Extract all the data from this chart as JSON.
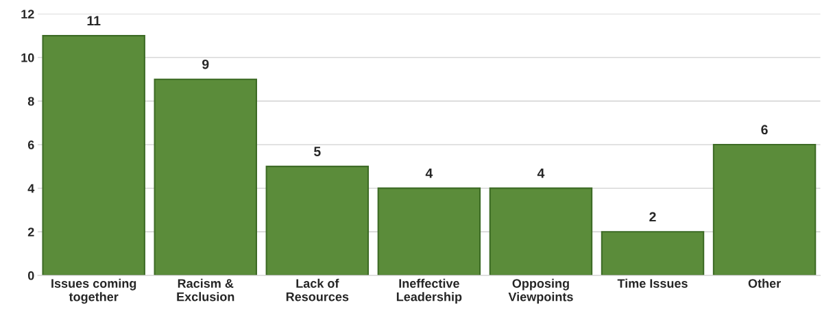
{
  "chart_data": {
    "type": "bar",
    "categories": [
      "Issues coming\ntogether",
      "Racism &\nExclusion",
      "Lack of\nResources",
      "Ineffective\nLeadership",
      "Opposing\nViewpoints",
      "Time Issues",
      "Other"
    ],
    "values": [
      11,
      9,
      5,
      4,
      4,
      2,
      6
    ],
    "color": "#5b8c3a",
    "ylim": [
      0,
      12
    ],
    "yticks": [
      0,
      2,
      4,
      6,
      8,
      10,
      12
    ],
    "grid": "y",
    "data_labels": true
  }
}
